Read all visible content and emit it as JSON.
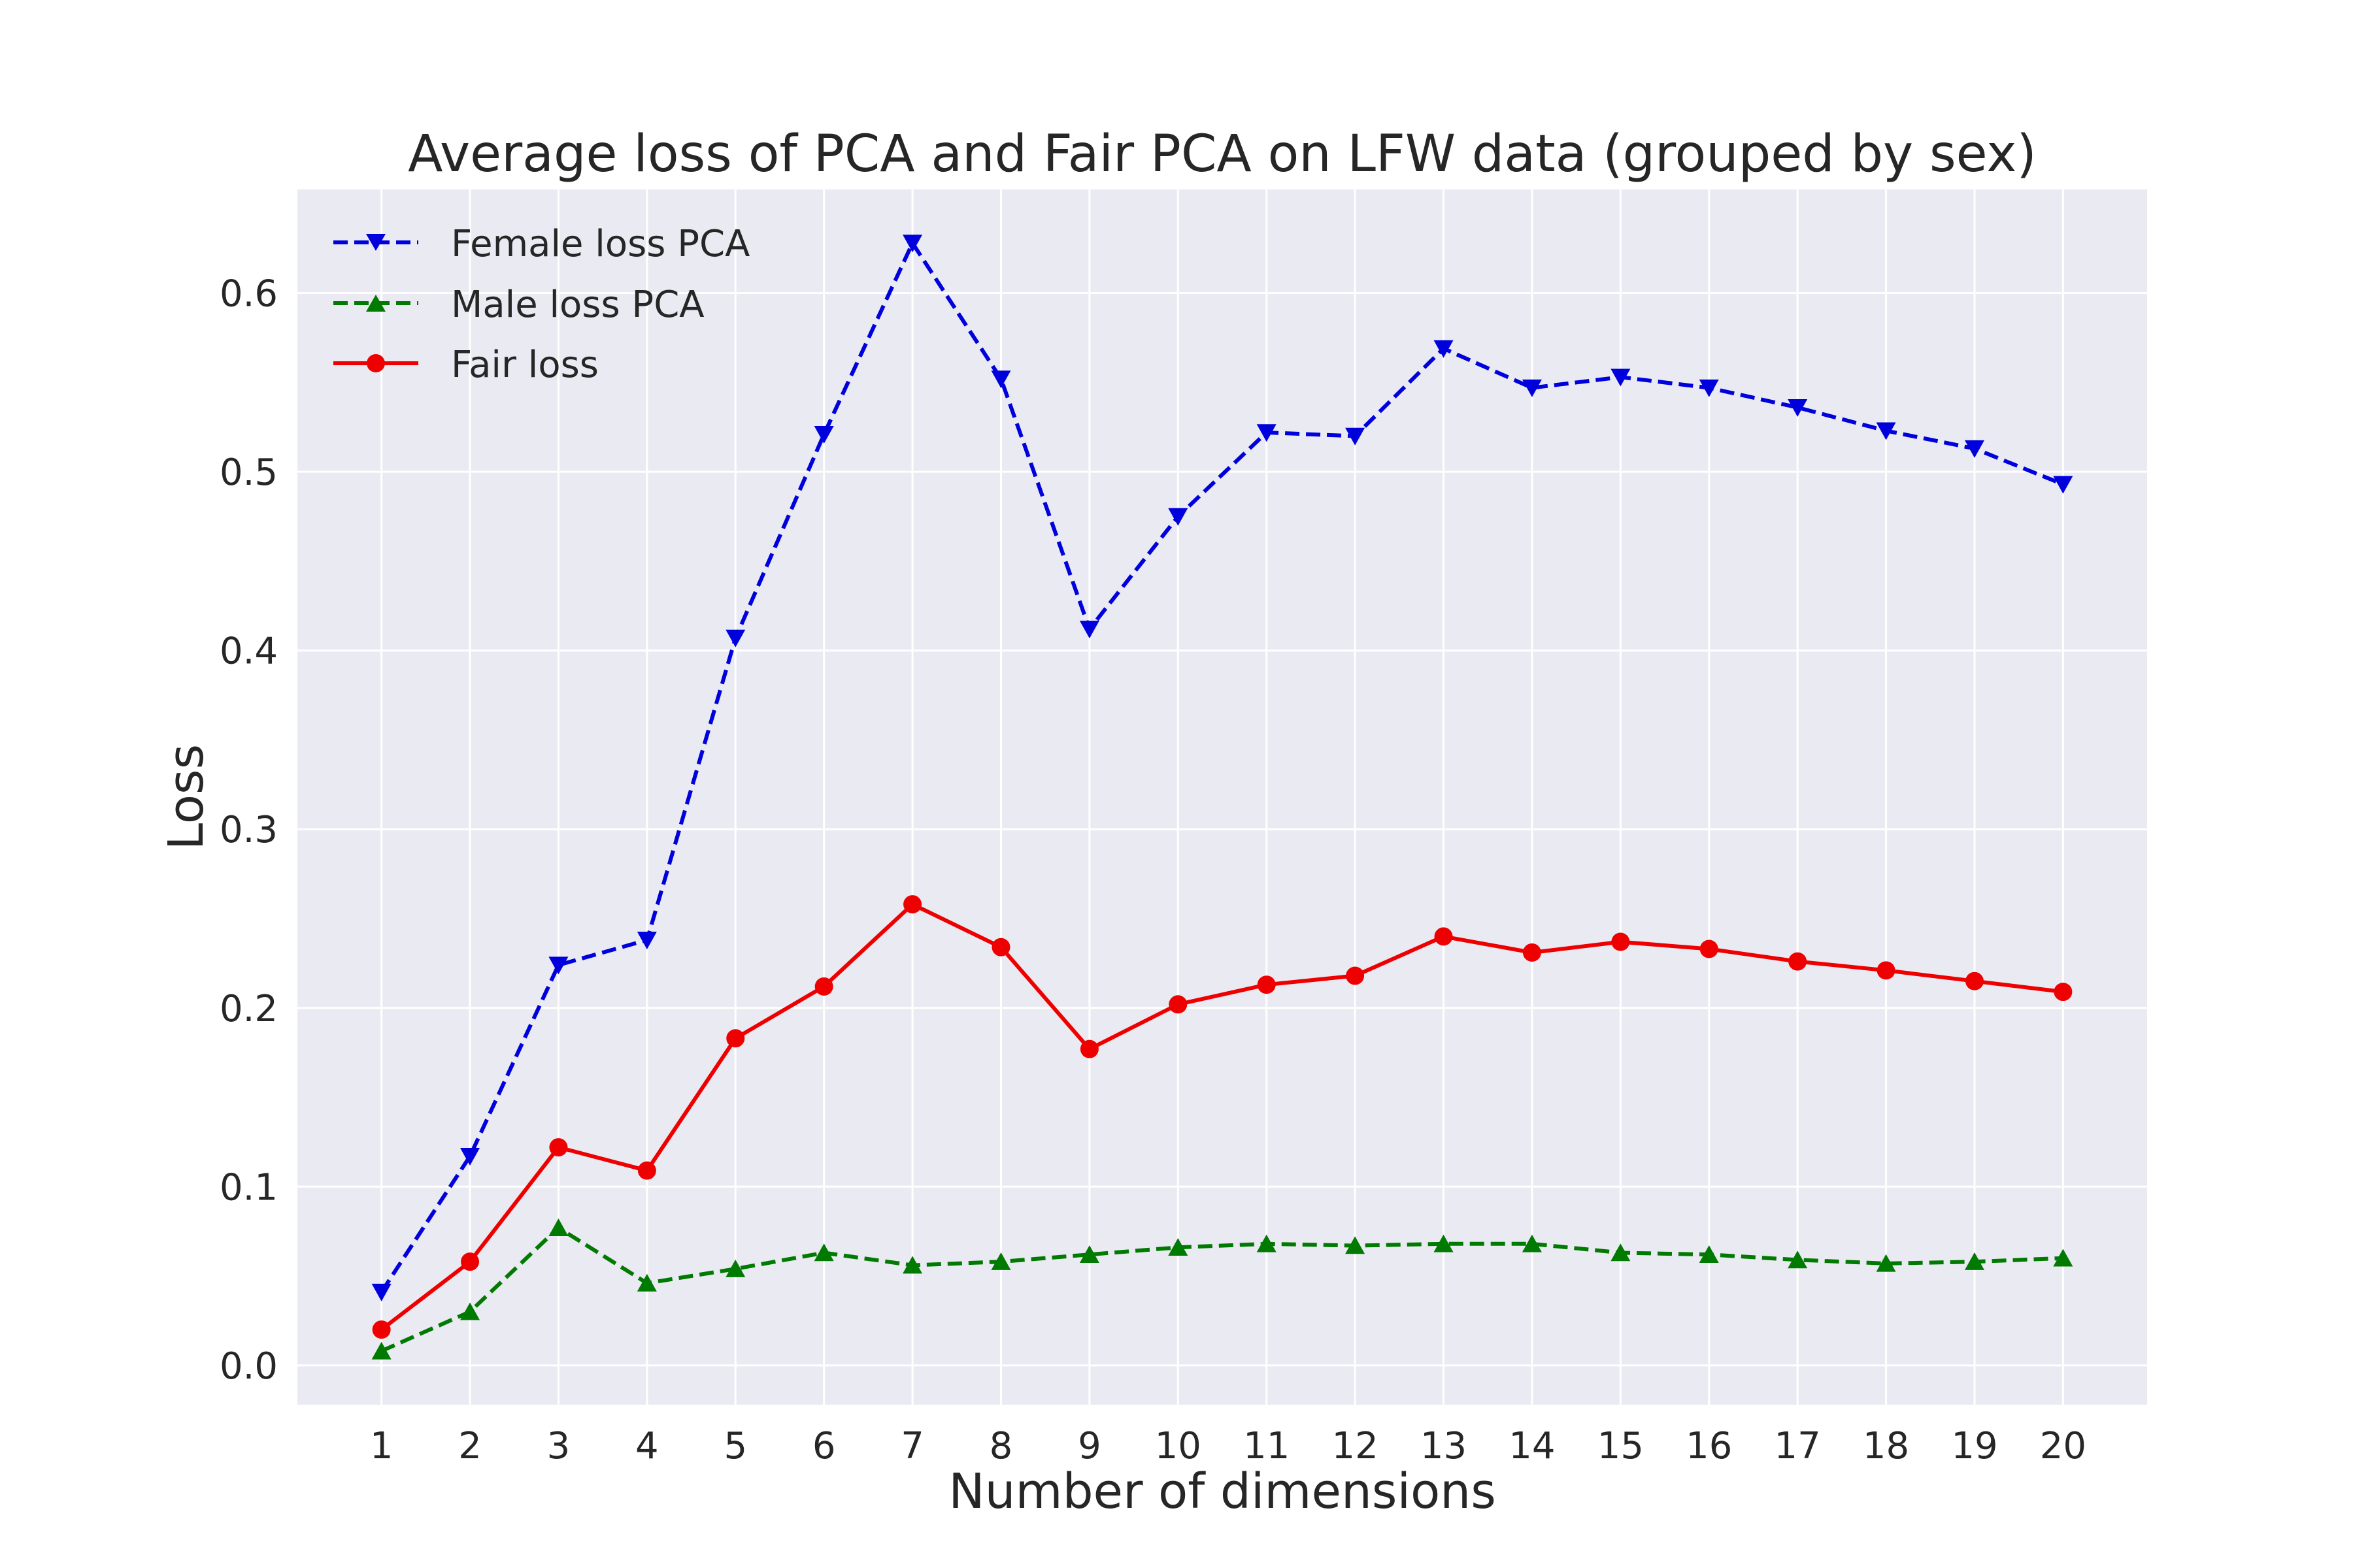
{
  "chart_data": {
    "type": "line",
    "title": "Average loss of PCA and Fair PCA on LFW data (grouped by sex)",
    "xlabel": "Number of dimensions",
    "ylabel": "Loss",
    "x": [
      1,
      2,
      3,
      4,
      5,
      6,
      7,
      8,
      9,
      10,
      11,
      12,
      13,
      14,
      15,
      16,
      17,
      18,
      19,
      20
    ],
    "xlim": [
      0.05,
      20.95
    ],
    "ylim": [
      -0.022,
      0.658
    ],
    "yticks": [
      0.0,
      0.1,
      0.2,
      0.3,
      0.4,
      0.5,
      0.6
    ],
    "ytick_labels": [
      "0.0",
      "0.1",
      "0.2",
      "0.3",
      "0.4",
      "0.5",
      "0.6"
    ],
    "xtick_labels": [
      "1",
      "2",
      "3",
      "4",
      "5",
      "6",
      "7",
      "8",
      "9",
      "10",
      "11",
      "12",
      "13",
      "14",
      "15",
      "16",
      "17",
      "18",
      "19",
      "20"
    ],
    "grid": true,
    "legend_position": "top-left",
    "background": "#eaeaf2",
    "series": [
      {
        "name": "Female loss PCA",
        "color": "#0000dd",
        "linestyle": "dashed",
        "marker": "triangle-down",
        "values": [
          0.041,
          0.117,
          0.224,
          0.238,
          0.407,
          0.521,
          0.628,
          0.552,
          0.412,
          0.475,
          0.522,
          0.52,
          0.569,
          0.547,
          0.553,
          0.547,
          0.536,
          0.523,
          0.513,
          0.493
        ]
      },
      {
        "name": "Male loss PCA",
        "color": "#007a00",
        "linestyle": "dashed",
        "marker": "triangle-up",
        "values": [
          0.008,
          0.03,
          0.077,
          0.046,
          0.054,
          0.063,
          0.056,
          0.058,
          0.062,
          0.066,
          0.068,
          0.067,
          0.068,
          0.068,
          0.063,
          0.062,
          0.059,
          0.057,
          0.058,
          0.06
        ]
      },
      {
        "name": "Fair loss",
        "color": "#ee0000",
        "linestyle": "solid",
        "marker": "circle",
        "values": [
          0.02,
          0.058,
          0.122,
          0.109,
          0.183,
          0.212,
          0.258,
          0.234,
          0.177,
          0.202,
          0.213,
          0.218,
          0.24,
          0.231,
          0.237,
          0.233,
          0.226,
          0.221,
          0.215,
          0.209
        ]
      }
    ]
  }
}
